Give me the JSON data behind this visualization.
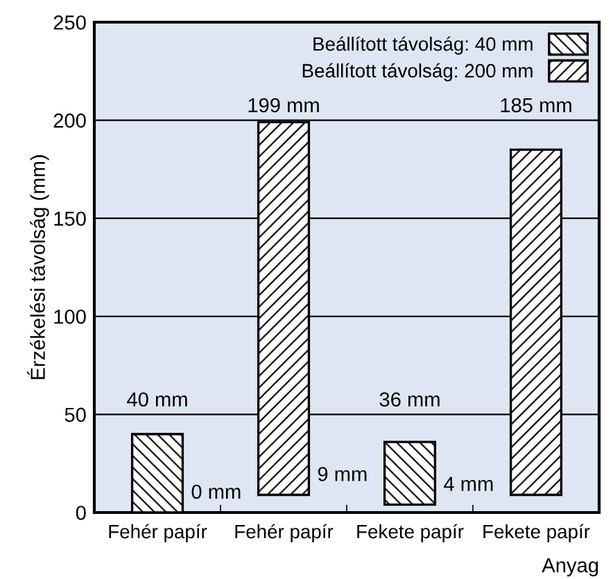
{
  "chart_data": {
    "type": "bar",
    "xlabel": "Anyag",
    "ylabel": "Érzékelési távolság (mm)",
    "categories": [
      "Fehér papír",
      "Fehér papír",
      "Fekete papír",
      "Fekete papír"
    ],
    "series": [
      {
        "name": "Beállított távolság: 40 mm",
        "color": "#000000",
        "values": [
          40,
          null,
          32,
          null
        ],
        "base": [
          0,
          null,
          4,
          null
        ]
      },
      {
        "name": "Beállított távolság: 200 mm",
        "color": "#000000",
        "values": [
          null,
          190,
          null,
          176
        ],
        "base": [
          null,
          9,
          null,
          9
        ]
      }
    ],
    "annotations": [
      "40 mm",
      "0 mm",
      "199 mm",
      "9 mm",
      "36 mm",
      "4 mm",
      "185 mm"
    ],
    "ylim": [
      0,
      250
    ],
    "yticks": [
      0,
      50,
      100,
      150,
      200,
      250
    ],
    "grid": "y",
    "legend": "top right"
  }
}
